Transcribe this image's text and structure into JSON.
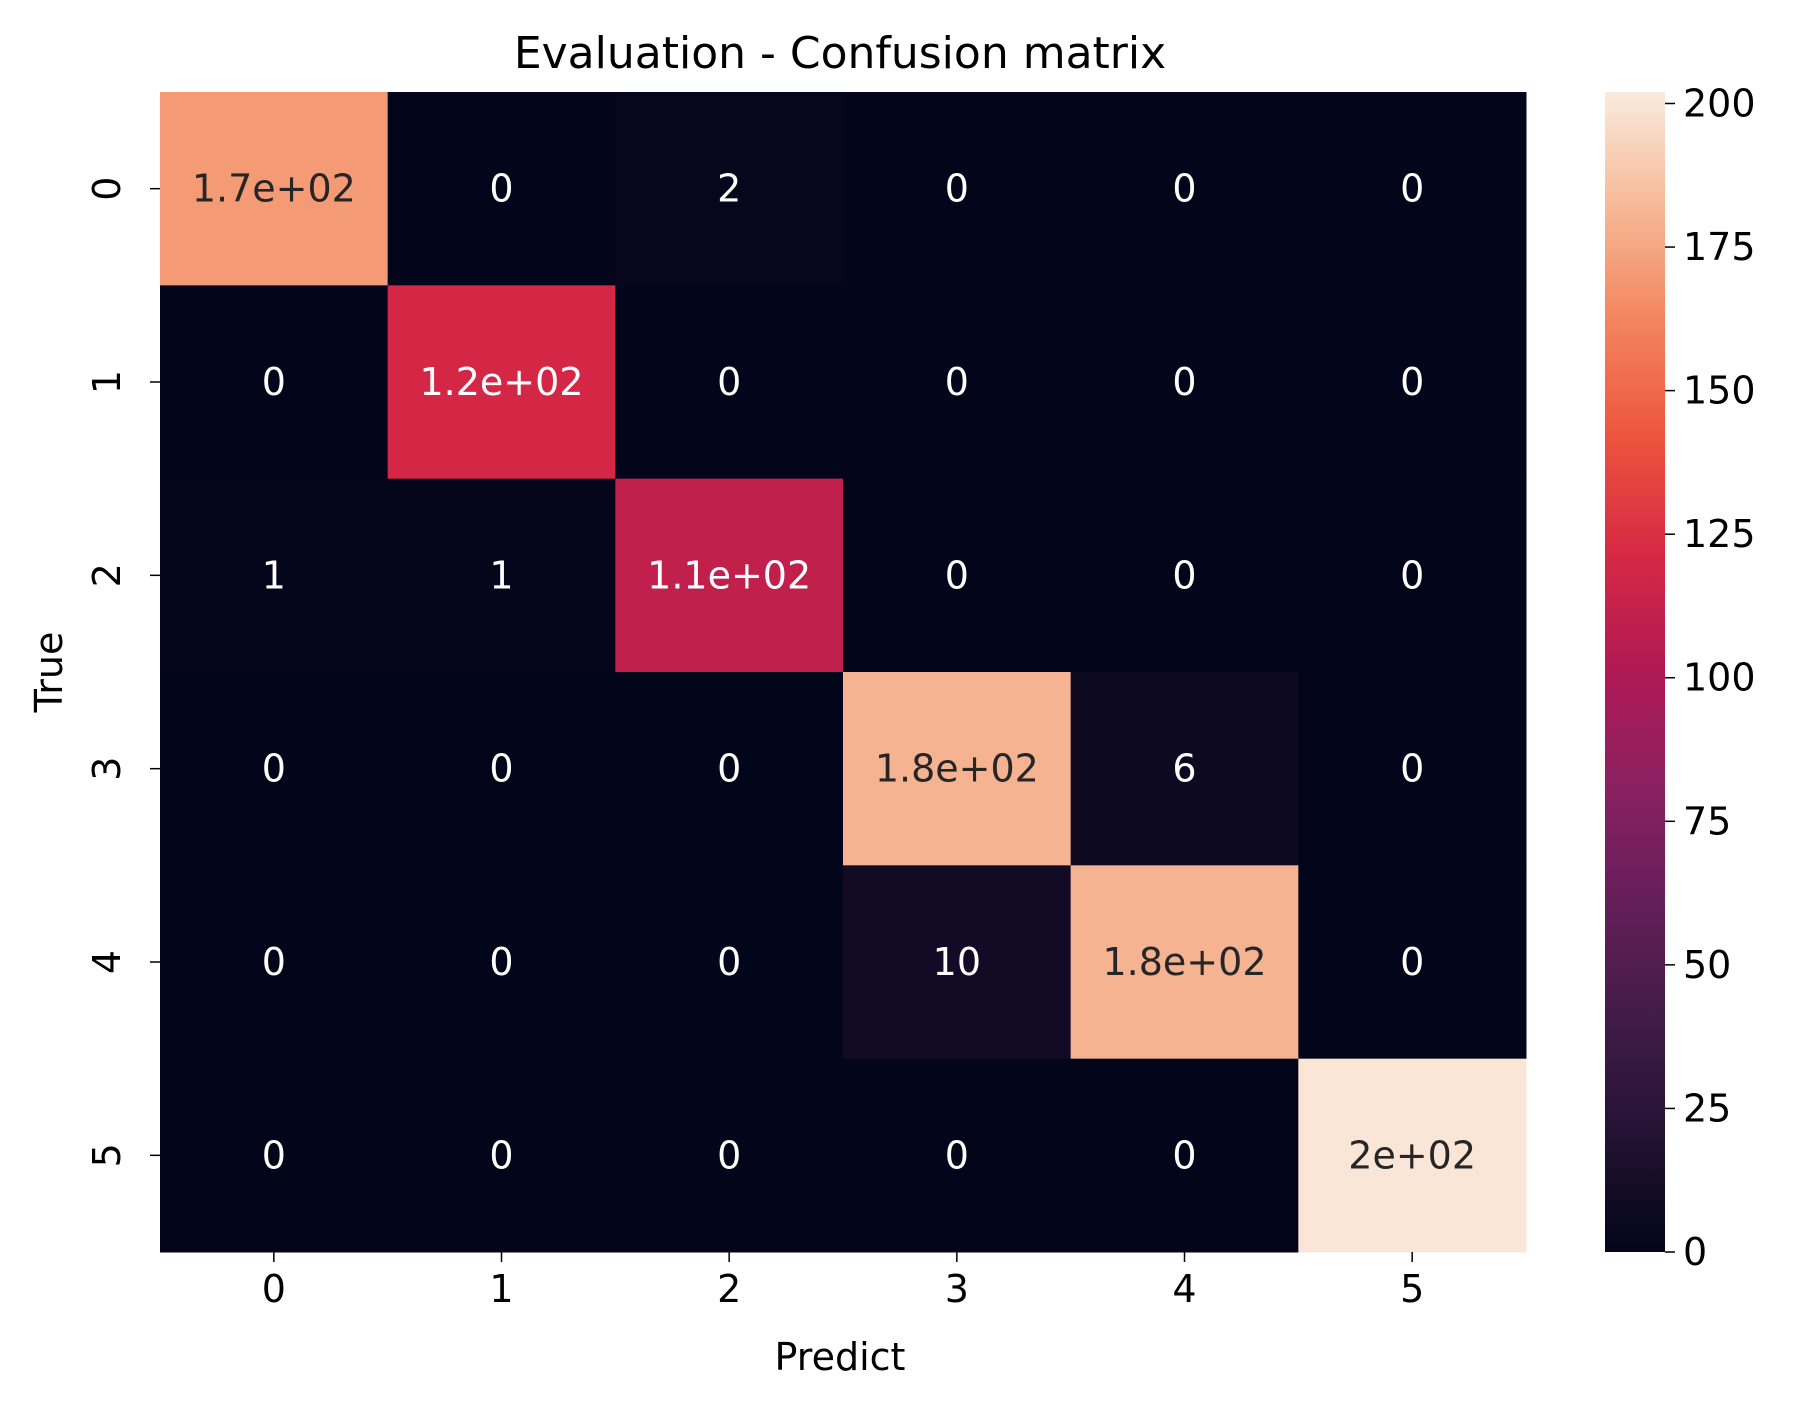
{
  "chart_data": {
    "type": "heatmap",
    "title": "Evaluation - Confusion matrix",
    "xlabel": "Predict",
    "ylabel": "True",
    "x_categories": [
      "0",
      "1",
      "2",
      "3",
      "4",
      "5"
    ],
    "y_categories": [
      "0",
      "1",
      "2",
      "3",
      "4",
      "5"
    ],
    "values": [
      [
        170,
        0,
        2,
        0,
        0,
        0
      ],
      [
        0,
        120,
        0,
        0,
        0,
        0
      ],
      [
        1,
        1,
        110,
        0,
        0,
        0
      ],
      [
        0,
        0,
        0,
        180,
        6,
        0
      ],
      [
        0,
        0,
        0,
        10,
        180,
        0
      ],
      [
        0,
        0,
        0,
        0,
        0,
        200
      ]
    ],
    "annotations": [
      [
        "1.7e+02",
        "0",
        "2",
        "0",
        "0",
        "0"
      ],
      [
        "0",
        "1.2e+02",
        "0",
        "0",
        "0",
        "0"
      ],
      [
        "1",
        "1",
        "1.1e+02",
        "0",
        "0",
        "0"
      ],
      [
        "0",
        "0",
        "0",
        "1.8e+02",
        "6",
        "0"
      ],
      [
        "0",
        "0",
        "0",
        "10",
        "1.8e+02",
        "0"
      ],
      [
        "0",
        "0",
        "0",
        "0",
        "0",
        "2e+02"
      ]
    ],
    "colorbar": {
      "range": [
        0,
        202
      ],
      "ticks": [
        0,
        25,
        50,
        75,
        100,
        125,
        150,
        175,
        200
      ],
      "colormap": "rocket"
    },
    "legend": "none",
    "grid": false
  }
}
